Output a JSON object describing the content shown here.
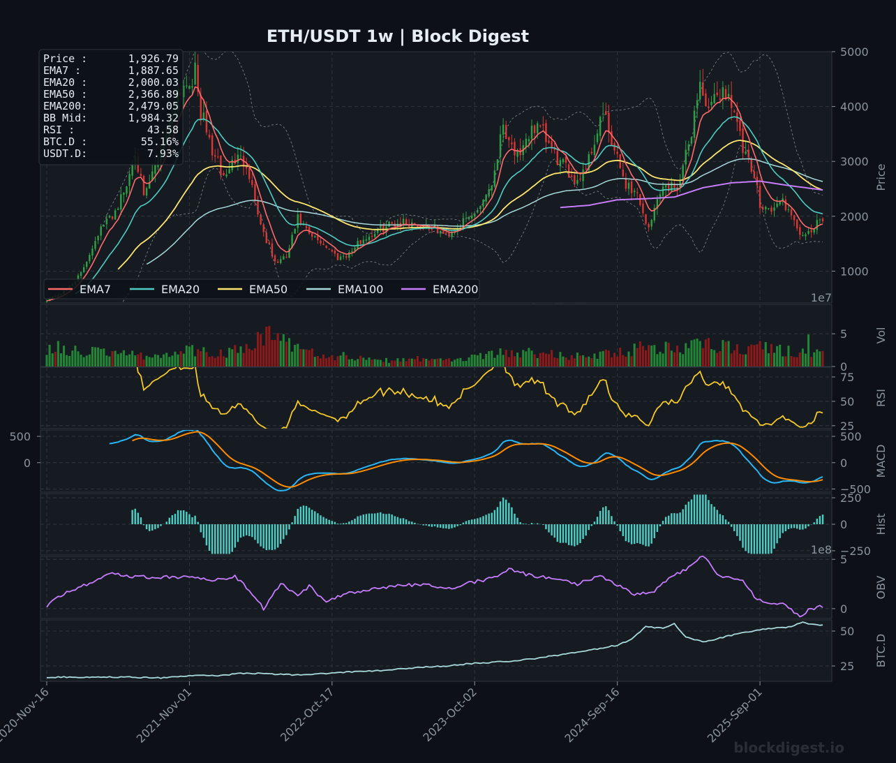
{
  "title": "ETH/USDT  1w  |  Block Digest",
  "watermark": "blockdigest.io",
  "colors": {
    "background": "#0d1117",
    "panel": "#161b22",
    "grid": "#30363d",
    "text": "#c9d1d9",
    "tick": "#8b949e",
    "up": "#2ea043",
    "down": "#da3633",
    "ema7": "#ff6b6b",
    "ema20": "#4ecdc4",
    "ema50": "#ffe66d",
    "ema100": "#a8dadc",
    "ema200": "#c77dff",
    "bb": "#6e7681",
    "rsi": "#f6c928",
    "macd": "#29b6f6",
    "signal": "#ff8c00",
    "hist": "#4ecdc4",
    "obv": "#c77dff",
    "btcd": "#a8dadc",
    "vol_up": "#238636",
    "vol_down": "#8b1a1a"
  },
  "info_box": [
    {
      "label": "Price :",
      "value": "1,926.79"
    },
    {
      "label": "EMA7  :",
      "value": "1,887.65"
    },
    {
      "label": "EMA20 :",
      "value": "2,000.03"
    },
    {
      "label": "EMA50 :",
      "value": "2,366.89"
    },
    {
      "label": "EMA200:",
      "value": "2,479.05"
    },
    {
      "label": "BB Mid:",
      "value": "1,984.32"
    },
    {
      "label": "RSI   :",
      "value": "43.58"
    },
    {
      "label": "BTC.D :",
      "value": "55.16%"
    },
    {
      "label": "USDT.D:",
      "value": "7.93%"
    }
  ],
  "legend": [
    "EMA7",
    "EMA20",
    "EMA50",
    "EMA100",
    "EMA200"
  ],
  "chart_data": {
    "type": "line",
    "x_tick_labels": [
      "2020-Nov-16",
      "2021-Nov-01",
      "2022-Oct-17",
      "2023-Oct-02",
      "2024-Sep-16",
      "2025-Sep-01"
    ],
    "panels": [
      {
        "id": "price",
        "ylabel": "Price",
        "ylim": [
          420,
          5000
        ],
        "ticks": [
          "1000",
          "2000",
          "3000",
          "4000",
          "5000"
        ],
        "tick_values": [
          1000,
          2000,
          3000,
          4000,
          5000
        ],
        "exponent": "1e7"
      },
      {
        "id": "vol",
        "ylabel": "Vol",
        "ylim": [
          0,
          9.5
        ],
        "ticks": [
          "0",
          "5"
        ],
        "tick_values": [
          0,
          5
        ]
      },
      {
        "id": "rsi",
        "ylabel": "RSI",
        "ylim": [
          22,
          85
        ],
        "ticks": [
          "25",
          "50",
          "75"
        ],
        "tick_values": [
          25,
          50,
          75
        ]
      },
      {
        "id": "macd",
        "ylabel": "MACD",
        "ylim": [
          -560,
          620
        ],
        "ticks": [
          "−500",
          "0",
          "500"
        ],
        "tick_values": [
          -500,
          0,
          500
        ],
        "left_ticks": [
          "500",
          "0"
        ],
        "left_tick_values": [
          500,
          0
        ]
      },
      {
        "id": "hist",
        "ylabel": "Hist",
        "ylim": [
          -290,
          290
        ],
        "ticks": [
          "−250",
          "0",
          "250"
        ],
        "tick_values": [
          -250,
          0,
          250
        ],
        "exponent": "1e8"
      },
      {
        "id": "obv",
        "ylabel": "OBV",
        "ylim": [
          -1.0,
          5.3
        ],
        "ticks": [
          "0",
          "5"
        ],
        "tick_values": [
          0,
          5
        ]
      },
      {
        "id": "btcd",
        "ylabel": "BTC.D",
        "ylim": [
          14,
          58
        ],
        "ticks": [
          "25",
          "50"
        ],
        "tick_values": [
          25,
          50
        ]
      }
    ],
    "price_anchors": [
      [
        0,
        480
      ],
      [
        6,
        620
      ],
      [
        12,
        950
      ],
      [
        18,
        1700
      ],
      [
        24,
        2100
      ],
      [
        28,
        2550
      ],
      [
        31,
        3250
      ],
      [
        34,
        2300
      ],
      [
        38,
        2900
      ],
      [
        42,
        3500
      ],
      [
        46,
        4300
      ],
      [
        50,
        4500
      ],
      [
        52,
        4600
      ],
      [
        54,
        3900
      ],
      [
        58,
        3200
      ],
      [
        62,
        2700
      ],
      [
        66,
        3050
      ],
      [
        70,
        3000
      ],
      [
        75,
        1850
      ],
      [
        80,
        1150
      ],
      [
        84,
        1250
      ],
      [
        88,
        1950
      ],
      [
        92,
        1650
      ],
      [
        97,
        1500
      ],
      [
        102,
        1250
      ],
      [
        106,
        1320
      ],
      [
        110,
        1550
      ],
      [
        115,
        1700
      ],
      [
        120,
        1850
      ],
      [
        125,
        1900
      ],
      [
        130,
        1850
      ],
      [
        135,
        1800
      ],
      [
        140,
        1650
      ],
      [
        145,
        1850
      ],
      [
        150,
        2050
      ],
      [
        156,
        2600
      ],
      [
        160,
        3700
      ],
      [
        163,
        3300
      ],
      [
        166,
        3000
      ],
      [
        170,
        3650
      ],
      [
        174,
        3500
      ],
      [
        178,
        3100
      ],
      [
        182,
        2850
      ],
      [
        186,
        2650
      ],
      [
        190,
        3050
      ],
      [
        195,
        3900
      ],
      [
        198,
        3300
      ],
      [
        203,
        2600
      ],
      [
        207,
        2400
      ],
      [
        211,
        1750
      ],
      [
        215,
        2500
      ],
      [
        219,
        2550
      ],
      [
        222,
        2650
      ],
      [
        225,
        3300
      ],
      [
        229,
        4450
      ],
      [
        232,
        3850
      ],
      [
        236,
        4300
      ],
      [
        240,
        4150
      ],
      [
        244,
        3200
      ],
      [
        248,
        2700
      ],
      [
        250,
        2250
      ],
      [
        254,
        2100
      ],
      [
        258,
        2300
      ],
      [
        262,
        1850
      ],
      [
        266,
        1600
      ],
      [
        270,
        1850
      ],
      [
        272,
        1930
      ]
    ],
    "ema200_anchors": [
      [
        180,
        2160
      ],
      [
        190,
        2200
      ],
      [
        200,
        2300
      ],
      [
        210,
        2320
      ],
      [
        220,
        2350
      ],
      [
        230,
        2520
      ],
      [
        240,
        2610
      ],
      [
        250,
        2640
      ],
      [
        260,
        2560
      ],
      [
        272,
        2480
      ]
    ],
    "vol_anchors": [
      [
        0,
        2.6
      ],
      [
        10,
        2.4
      ],
      [
        20,
        2.0
      ],
      [
        30,
        1.8
      ],
      [
        40,
        1.6
      ],
      [
        50,
        2.6
      ],
      [
        60,
        1.8
      ],
      [
        70,
        3.2
      ],
      [
        75,
        4.8
      ],
      [
        80,
        5.2
      ],
      [
        85,
        3.4
      ],
      [
        90,
        2.2
      ],
      [
        100,
        1.6
      ],
      [
        110,
        1.2
      ],
      [
        120,
        0.9
      ],
      [
        130,
        1.0
      ],
      [
        140,
        1.1
      ],
      [
        150,
        1.4
      ],
      [
        160,
        2.2
      ],
      [
        170,
        2.1
      ],
      [
        180,
        1.6
      ],
      [
        190,
        1.5
      ],
      [
        200,
        2.2
      ],
      [
        210,
        3.0
      ],
      [
        220,
        2.7
      ],
      [
        230,
        3.3
      ],
      [
        240,
        2.8
      ],
      [
        250,
        2.8
      ],
      [
        260,
        2.4
      ],
      [
        272,
        2.1
      ]
    ],
    "obv_anchors": [
      [
        0,
        0.3
      ],
      [
        6,
        1.5
      ],
      [
        12,
        2.2
      ],
      [
        22,
        3.6
      ],
      [
        30,
        3.2
      ],
      [
        40,
        3.2
      ],
      [
        50,
        3.2
      ],
      [
        60,
        2.9
      ],
      [
        66,
        3.3
      ],
      [
        72,
        1.5
      ],
      [
        76,
        0.0
      ],
      [
        82,
        2.6
      ],
      [
        88,
        1.2
      ],
      [
        92,
        2.3
      ],
      [
        98,
        0.6
      ],
      [
        104,
        1.5
      ],
      [
        110,
        1.6
      ],
      [
        116,
        2.1
      ],
      [
        124,
        2.3
      ],
      [
        132,
        2.5
      ],
      [
        140,
        2.0
      ],
      [
        148,
        2.6
      ],
      [
        156,
        3.1
      ],
      [
        162,
        4.0
      ],
      [
        168,
        3.5
      ],
      [
        178,
        3.0
      ],
      [
        186,
        2.5
      ],
      [
        194,
        3.4
      ],
      [
        198,
        2.7
      ],
      [
        206,
        1.5
      ],
      [
        212,
        1.6
      ],
      [
        218,
        3.0
      ],
      [
        224,
        4.0
      ],
      [
        230,
        5.3
      ],
      [
        236,
        3.3
      ],
      [
        244,
        2.9
      ],
      [
        248,
        1.2
      ],
      [
        254,
        0.5
      ],
      [
        258,
        0.4
      ],
      [
        264,
        -0.7
      ],
      [
        268,
        0.0
      ],
      [
        272,
        0.2
      ]
    ],
    "btcd_anchors": [
      [
        0,
        17
      ],
      [
        20,
        17
      ],
      [
        30,
        17
      ],
      [
        40,
        16.5
      ],
      [
        50,
        18
      ],
      [
        60,
        18
      ],
      [
        70,
        20
      ],
      [
        80,
        19
      ],
      [
        90,
        18.5
      ],
      [
        100,
        20
      ],
      [
        110,
        21
      ],
      [
        120,
        22
      ],
      [
        130,
        24
      ],
      [
        140,
        25
      ],
      [
        150,
        27
      ],
      [
        160,
        28
      ],
      [
        170,
        30
      ],
      [
        180,
        33
      ],
      [
        190,
        36
      ],
      [
        200,
        40
      ],
      [
        205,
        44
      ],
      [
        210,
        53
      ],
      [
        216,
        52
      ],
      [
        220,
        55
      ],
      [
        224,
        46
      ],
      [
        230,
        42
      ],
      [
        240,
        47
      ],
      [
        250,
        51
      ],
      [
        260,
        53
      ],
      [
        265,
        56
      ],
      [
        272,
        54
      ]
    ]
  }
}
